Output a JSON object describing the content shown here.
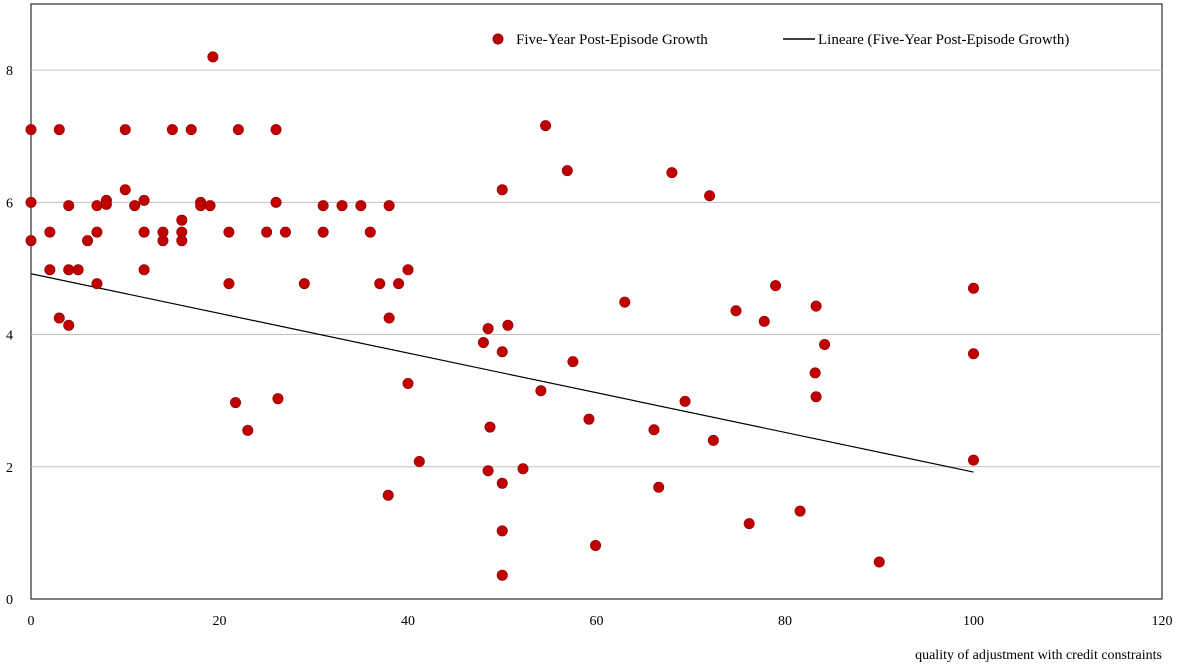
{
  "chart_data": {
    "type": "scatter",
    "title": "",
    "xlabel": "quality of adjustment with credit constraints",
    "ylabel": "",
    "xlim": [
      0,
      120
    ],
    "ylim": [
      0,
      9
    ],
    "x_ticks": [
      0,
      20,
      40,
      60,
      80,
      100,
      120
    ],
    "y_ticks": [
      0,
      2,
      4,
      6,
      8
    ],
    "grid": "horizontal",
    "legend_position": "top-right",
    "colors": {
      "points": "#c00000",
      "trend": "#000000",
      "grid": "#c0c0c0"
    },
    "series": [
      {
        "name": "Five-Year Post-Episode Growth",
        "kind": "scatter",
        "points": [
          [
            0,
            7.1
          ],
          [
            0,
            6.0
          ],
          [
            0,
            5.42
          ],
          [
            2,
            5.55
          ],
          [
            2,
            4.98
          ],
          [
            3,
            7.1
          ],
          [
            3,
            4.25
          ],
          [
            4,
            5.95
          ],
          [
            4,
            4.98
          ],
          [
            4,
            4.14
          ],
          [
            5,
            4.98
          ],
          [
            6,
            5.42
          ],
          [
            7,
            5.95
          ],
          [
            7,
            5.55
          ],
          [
            7,
            4.77
          ],
          [
            8,
            6.03
          ],
          [
            8,
            5.97
          ],
          [
            10,
            6.19
          ],
          [
            10,
            7.1
          ],
          [
            11,
            5.95
          ],
          [
            12,
            6.03
          ],
          [
            12,
            5.55
          ],
          [
            12,
            4.98
          ],
          [
            14,
            5.55
          ],
          [
            14,
            5.42
          ],
          [
            15,
            7.1
          ],
          [
            16,
            5.73
          ],
          [
            16,
            5.55
          ],
          [
            16,
            5.42
          ],
          [
            17,
            7.1
          ],
          [
            18,
            6.0
          ],
          [
            18,
            5.95
          ],
          [
            19,
            5.95
          ],
          [
            19.3,
            8.2
          ],
          [
            21,
            5.55
          ],
          [
            21,
            4.77
          ],
          [
            21.7,
            2.97
          ],
          [
            22,
            7.1
          ],
          [
            23,
            2.55
          ],
          [
            25,
            5.55
          ],
          [
            26,
            7.1
          ],
          [
            26,
            6.0
          ],
          [
            26.2,
            3.03
          ],
          [
            27,
            5.55
          ],
          [
            29,
            4.77
          ],
          [
            31,
            5.95
          ],
          [
            31,
            5.55
          ],
          [
            33,
            5.95
          ],
          [
            35,
            5.95
          ],
          [
            36,
            5.55
          ],
          [
            37,
            4.77
          ],
          [
            38,
            5.95
          ],
          [
            38,
            4.25
          ],
          [
            37.9,
            1.57
          ],
          [
            39,
            4.77
          ],
          [
            40,
            4.98
          ],
          [
            40,
            3.26
          ],
          [
            41.2,
            2.08
          ],
          [
            48,
            3.88
          ],
          [
            48.5,
            4.09
          ],
          [
            48.5,
            1.94
          ],
          [
            48.7,
            2.6
          ],
          [
            50,
            6.19
          ],
          [
            50,
            3.74
          ],
          [
            50,
            1.75
          ],
          [
            50,
            1.03
          ],
          [
            50,
            0.36
          ],
          [
            50.6,
            4.14
          ],
          [
            52.2,
            1.97
          ],
          [
            54.1,
            3.15
          ],
          [
            54.6,
            7.16
          ],
          [
            56.9,
            6.48
          ],
          [
            57.5,
            3.59
          ],
          [
            59.2,
            2.72
          ],
          [
            59.9,
            0.81
          ],
          [
            63,
            4.49
          ],
          [
            66.1,
            2.56
          ],
          [
            66.6,
            1.69
          ],
          [
            68,
            6.45
          ],
          [
            69.4,
            2.99
          ],
          [
            72,
            6.1
          ],
          [
            72.4,
            2.4
          ],
          [
            74.8,
            4.36
          ],
          [
            76.2,
            1.14
          ],
          [
            77.8,
            4.2
          ],
          [
            79,
            4.74
          ],
          [
            81.6,
            1.33
          ],
          [
            83.2,
            3.42
          ],
          [
            83.3,
            4.43
          ],
          [
            83.3,
            3.06
          ],
          [
            84.2,
            3.85
          ],
          [
            90,
            0.56
          ],
          [
            100,
            4.7
          ],
          [
            100,
            3.71
          ],
          [
            100,
            2.1
          ]
        ]
      },
      {
        "name": "Lineare (Five-Year Post-Episode Growth)",
        "kind": "trendline",
        "x": [
          0,
          100
        ],
        "y": [
          4.92,
          1.92
        ]
      }
    ]
  }
}
